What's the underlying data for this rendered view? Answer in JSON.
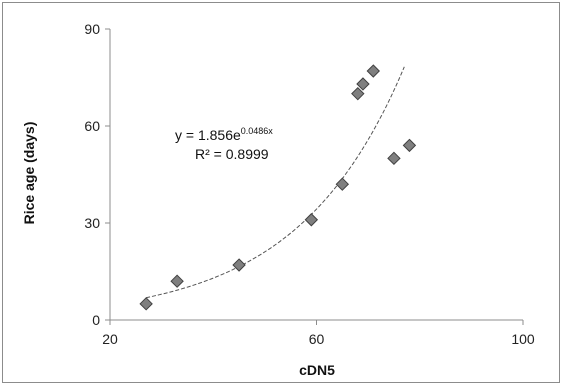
{
  "chart_data": {
    "type": "scatter",
    "title": "",
    "xlabel": "cDN5",
    "ylabel": "Rice age (days)",
    "xlim": [
      20,
      100
    ],
    "ylim": [
      0,
      90
    ],
    "x_ticks": [
      "20",
      "60",
      "100"
    ],
    "y_ticks": [
      "0",
      "30",
      "60",
      "90"
    ],
    "grid": false,
    "legend": "none",
    "series": [
      {
        "points": [
          {
            "x": 27,
            "y": 5
          },
          {
            "x": 33,
            "y": 12
          },
          {
            "x": 45,
            "y": 17
          },
          {
            "x": 59,
            "y": 31
          },
          {
            "x": 65,
            "y": 42
          },
          {
            "x": 68,
            "y": 70
          },
          {
            "x": 69,
            "y": 73
          },
          {
            "x": 71,
            "y": 77
          },
          {
            "x": 75,
            "y": 50
          },
          {
            "x": 78,
            "y": 54
          }
        ]
      }
    ],
    "trendline": {
      "type": "exponential",
      "a": 1.856,
      "b": 0.0486,
      "x_from": 27,
      "x_to": 77
    },
    "annotations": {
      "equation_base": "y = 1.856e",
      "equation_exp": "0.0486x",
      "r_squared": "R² = 0.8999"
    },
    "colors": {
      "marker_fill": "#7f7f7f",
      "marker_stroke": "#404040",
      "trendline": "#555555",
      "axis": "#8c8c8c"
    }
  }
}
